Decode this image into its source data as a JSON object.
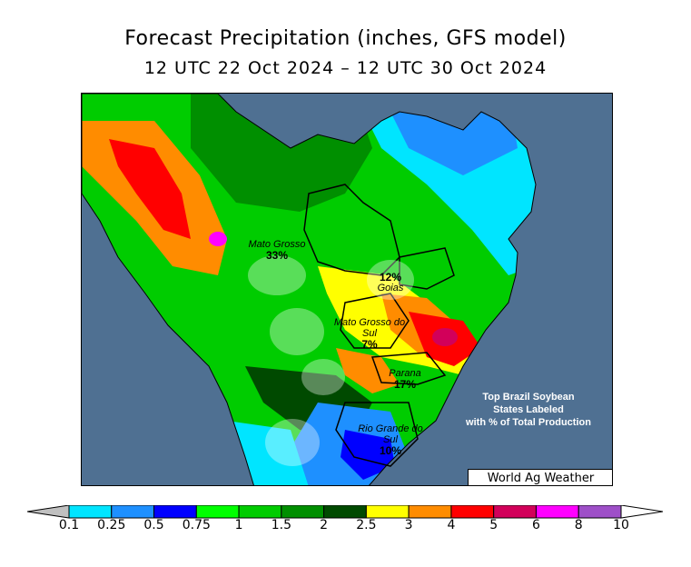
{
  "header": {
    "title": "Forecast Precipitation (inches, GFS model)",
    "subtitle": "12 UTC 22 Oct 2024 – 12 UTC 30 Oct 2024"
  },
  "map": {
    "region": "Brazil",
    "state_labels": [
      {
        "name": "Mato Grosso",
        "pct": "33%"
      },
      {
        "name": "Goias",
        "pct": "12%"
      },
      {
        "name": "Mato Grosso do Sul",
        "pct": "7%"
      },
      {
        "name": "Parana",
        "pct": "17%"
      },
      {
        "name": "Rio Grande do Sul",
        "pct": "10%"
      }
    ],
    "info_lines": [
      "Top Brazil Soybean",
      "States Labeled",
      "with % of Total Production"
    ],
    "branding": "World Ag Weather",
    "colors": {
      "ocean": "#4f7092",
      "land_dry": "#c0c0c0",
      "border": "#000000"
    }
  },
  "legend": {
    "ticks": [
      "0.1",
      "0.25",
      "0.5",
      "0.75",
      "1",
      "1.5",
      "2",
      "2.5",
      "3",
      "4",
      "5",
      "6",
      "8",
      "10"
    ],
    "colors": [
      "#c0c0c0",
      "#00e5ff",
      "#1e90ff",
      "#0000ff",
      "#00ff00",
      "#00cc00",
      "#008f00",
      "#004a00",
      "#ffff00",
      "#ff8c00",
      "#ff0000",
      "#d2005a",
      "#ff00ff",
      "#9e4fc8",
      "#ffffff"
    ]
  }
}
